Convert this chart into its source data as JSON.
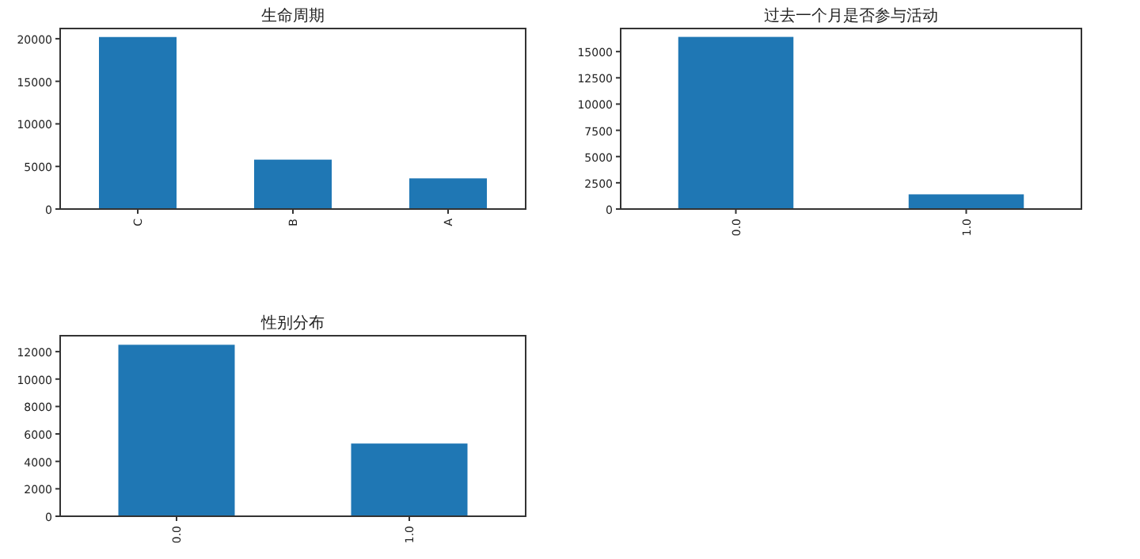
{
  "chart_data": [
    {
      "type": "bar",
      "title": "生命周期",
      "categories": [
        "C",
        "B",
        "A"
      ],
      "values": [
        20200,
        5800,
        3600
      ],
      "color": "#1f77b4",
      "ylim": [
        0,
        21200
      ],
      "yticks": [
        0,
        5000,
        10000,
        15000,
        20000
      ]
    },
    {
      "type": "bar",
      "title": "过去一个月是否参与活动",
      "categories": [
        "0.0",
        "1.0"
      ],
      "values": [
        16400,
        1400
      ],
      "color": "#1f77b4",
      "ylim": [
        0,
        17200
      ],
      "yticks": [
        0,
        2500,
        5000,
        7500,
        10000,
        12500,
        15000
      ]
    },
    {
      "type": "bar",
      "title": "性别分布",
      "categories": [
        "0.0",
        "1.0"
      ],
      "values": [
        12500,
        5300
      ],
      "color": "#1f77b4",
      "ylim": [
        0,
        13160
      ],
      "yticks": [
        0,
        2000,
        4000,
        6000,
        8000,
        10000,
        12000
      ]
    }
  ]
}
